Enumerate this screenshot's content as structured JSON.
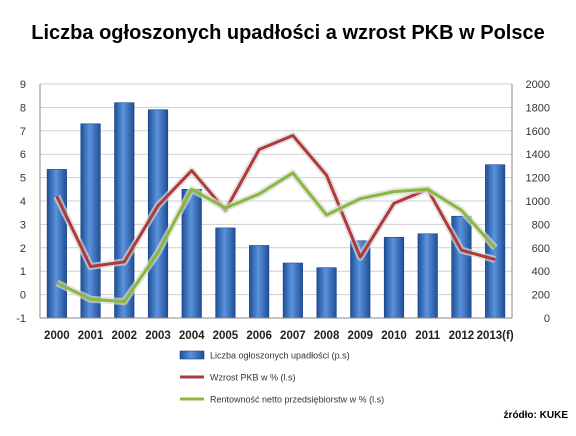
{
  "chart_data": {
    "type": "bar+line",
    "title": "Liczba ogłoszonych upadłości a wzrost PKB w Polsce",
    "categories": [
      "2000",
      "2001",
      "2002",
      "2003",
      "2004",
      "2005",
      "2006",
      "2007",
      "2008",
      "2009",
      "2010",
      "2011",
      "2012",
      "2013(f)"
    ],
    "left_axis": {
      "ylim": [
        -1,
        9
      ],
      "ticks": [
        -1,
        0,
        1,
        2,
        3,
        4,
        5,
        6,
        7,
        8,
        9
      ]
    },
    "right_axis": {
      "ylim": [
        0,
        2000
      ],
      "ticks": [
        0,
        200,
        400,
        600,
        800,
        1000,
        1200,
        1400,
        1600,
        1800,
        2000
      ]
    },
    "series": [
      {
        "name": "Liczba ogłoszonych upadłości (p.s)",
        "kind": "bar",
        "axis": "right",
        "color": "#3b74c0",
        "values": [
          1270,
          1660,
          1840,
          1780,
          1100,
          770,
          620,
          470,
          430,
          660,
          690,
          720,
          870,
          1310
        ]
      },
      {
        "name": "Wzrost PKB w % (l.s)",
        "kind": "line",
        "axis": "left",
        "color": "#b03a3a",
        "values": [
          4.2,
          1.2,
          1.4,
          3.8,
          5.3,
          3.6,
          6.2,
          6.8,
          5.1,
          1.6,
          3.9,
          4.5,
          1.9,
          1.5
        ]
      },
      {
        "name": "Rentowność netto przedsiębiorstw w % (l.s)",
        "kind": "line",
        "axis": "left",
        "color": "#8ab83c",
        "values": [
          0.5,
          -0.2,
          -0.3,
          1.8,
          4.5,
          3.7,
          4.3,
          5.2,
          3.4,
          4.1,
          4.4,
          4.5,
          3.6,
          2.0
        ]
      }
    ],
    "grid": true,
    "legend": "bottom",
    "source": "źródło: KUKE"
  }
}
